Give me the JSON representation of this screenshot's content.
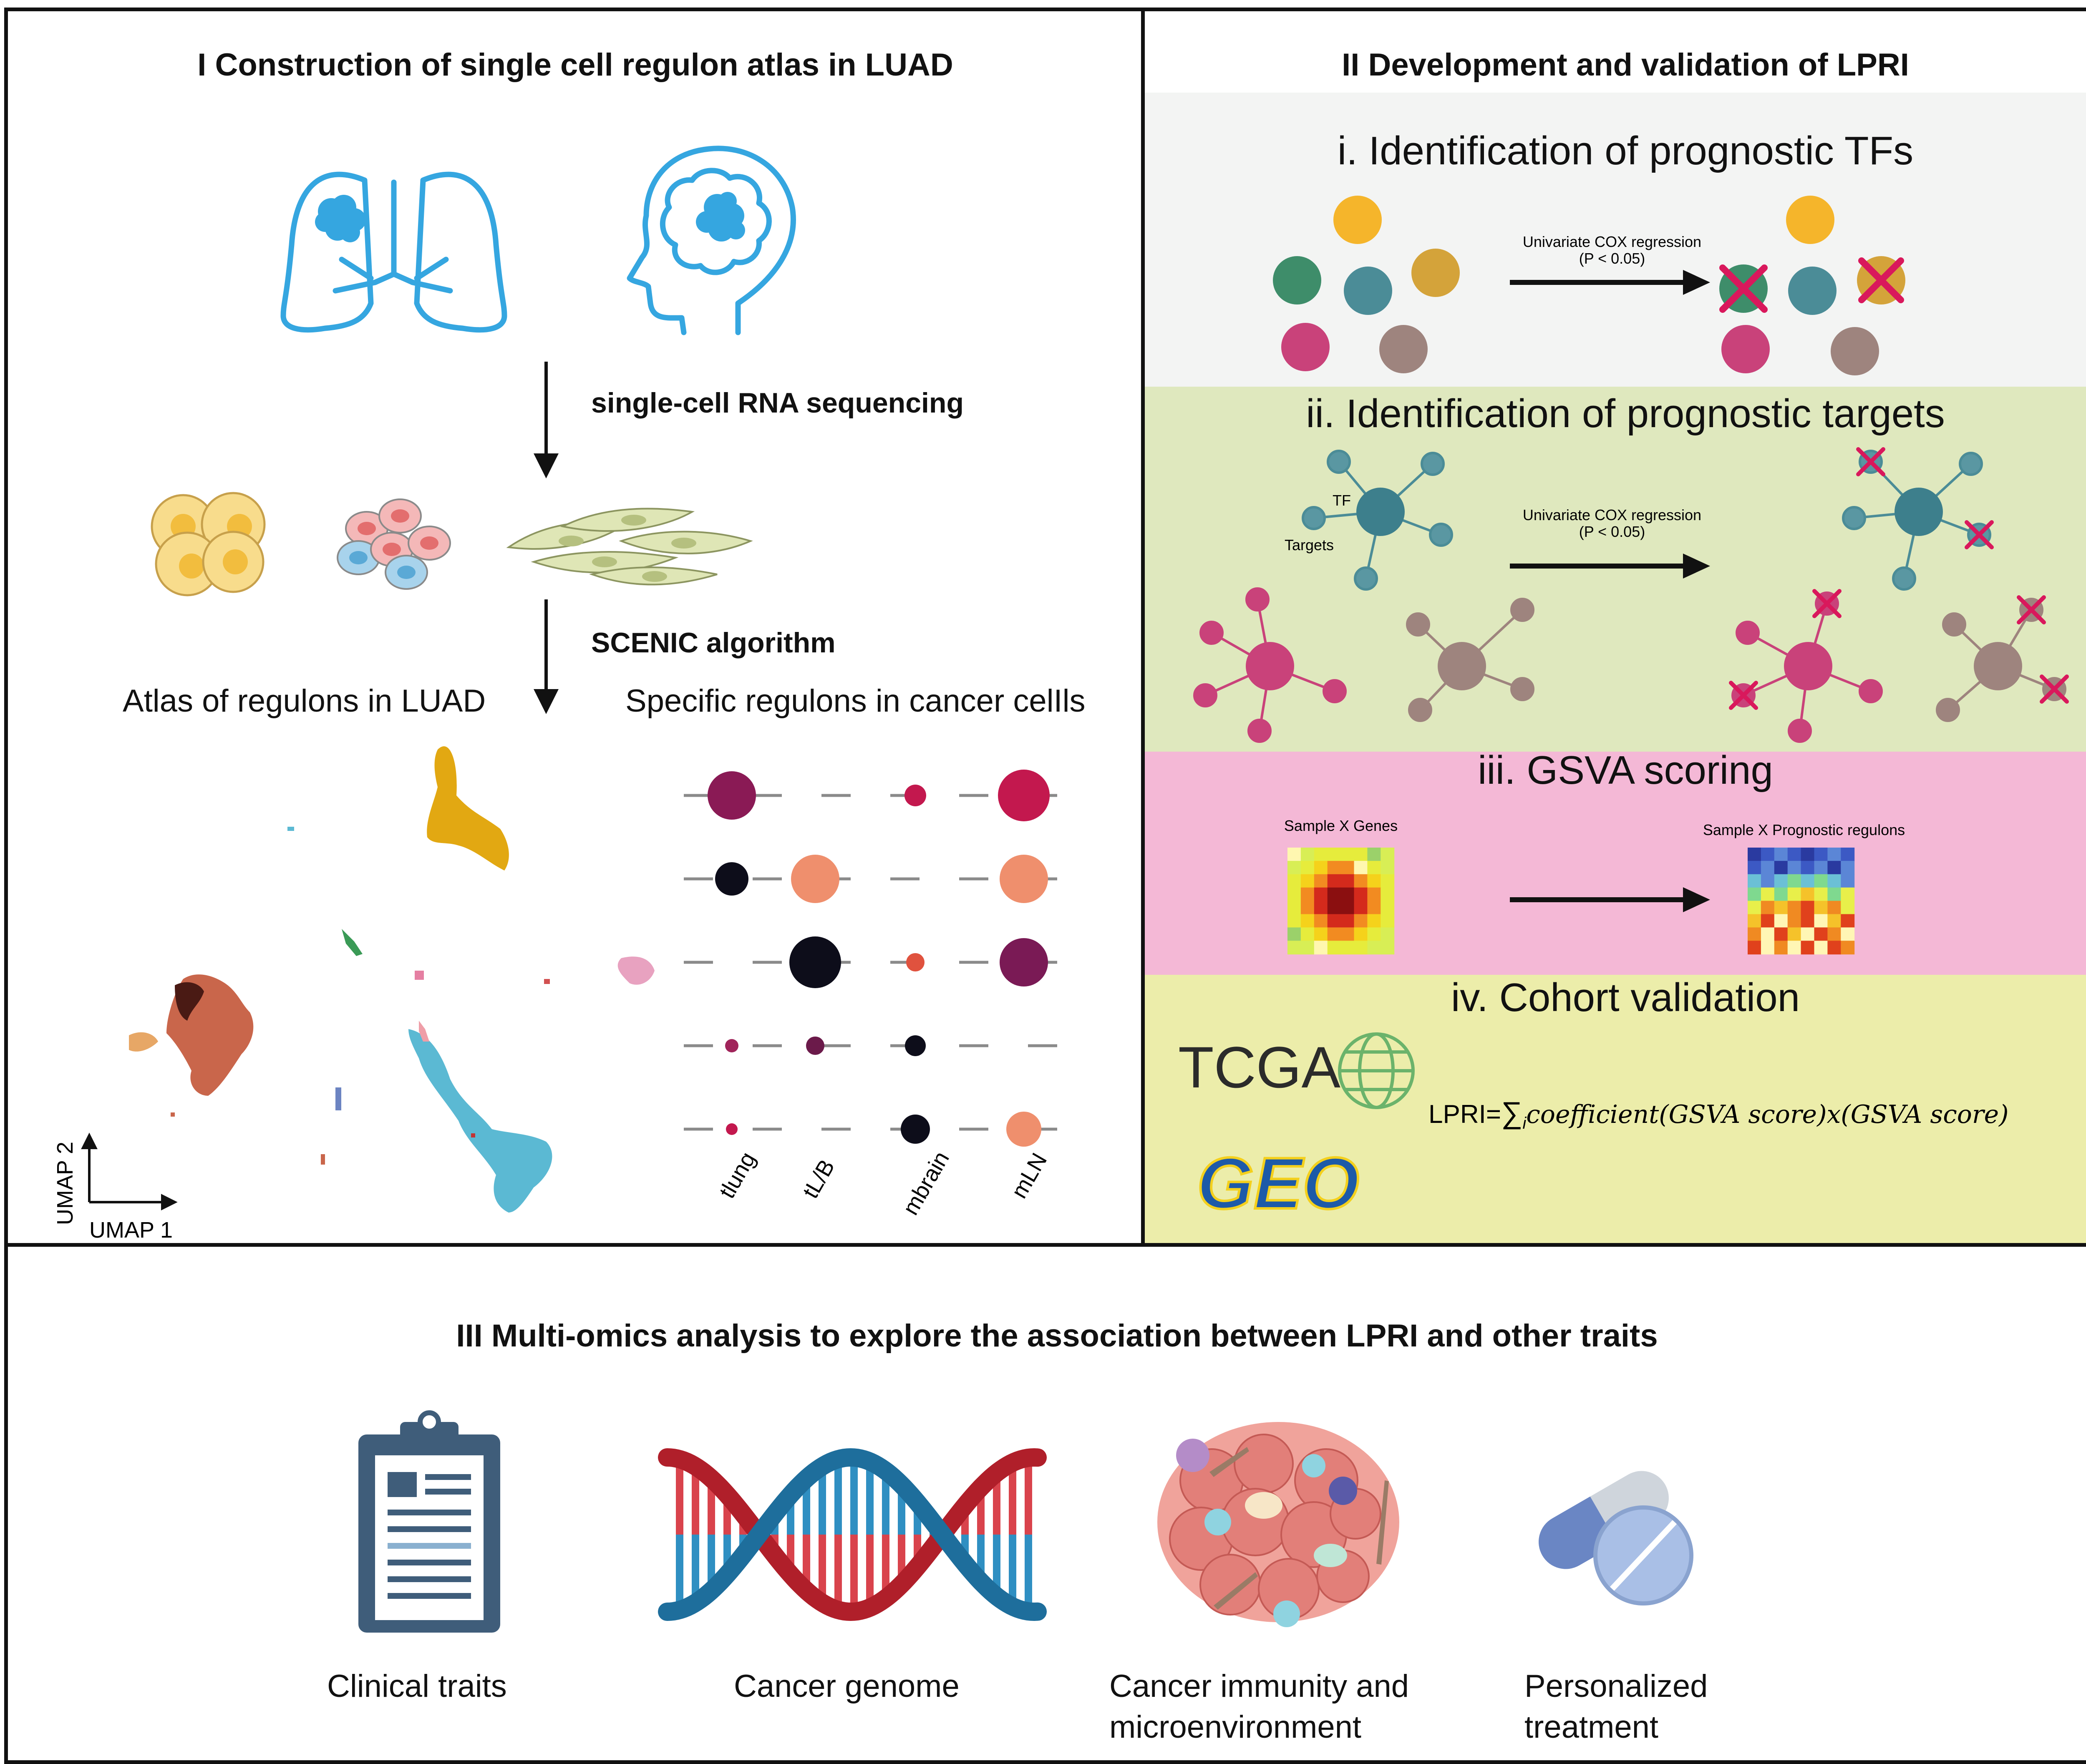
{
  "panel1": {
    "title": "I Construction of single cell regulon atlas in LUAD",
    "step1_label": "single-cell RNA sequencing",
    "step2_label": "SCENIC algorithm",
    "atlas_label": "Atlas of regulons in LUAD",
    "specific_label": "Specific regulons in cancer celIls",
    "umap_x": "UMAP 1",
    "umap_y": "UMAP 2",
    "dot_columns": [
      "tlung",
      "tL/B",
      "mbrain",
      "mLN"
    ]
  },
  "panel2": {
    "title": "II Development and validation of LPRI",
    "s1": {
      "title": "i. Identification of prognostic TFs",
      "arrow_line1": "Univariate COX regression",
      "arrow_line2": "(P < 0.05)"
    },
    "s2": {
      "title": "ii. Identification of prognostic targets",
      "tf_label": "TF",
      "targets_label": "Targets",
      "arrow_line1": "Univariate COX regression",
      "arrow_line2": "(P < 0.05)"
    },
    "s3": {
      "title": "iii. GSVA scoring",
      "left_label": "Sample X Genes",
      "right_label": "Sample X Prognostic regulons"
    },
    "s4": {
      "title": "iv. Cohort validation",
      "tcga": "TCGA",
      "geo": "GEO",
      "formula_prefix": "LPRI=",
      "formula_sum": "∑",
      "formula_sub": "i",
      "formula_body": "coefficient(GSVA score)x(GSVA score)"
    }
  },
  "panel3": {
    "title": "III Multi-omics analysis to explore the association between LPRI and other traits",
    "items": [
      {
        "label1": "Clinical traits",
        "label2": ""
      },
      {
        "label1": "Cancer genome",
        "label2": ""
      },
      {
        "label1": "Cancer immunity and",
        "label2": "microenvironment"
      },
      {
        "label1": "Personalized",
        "label2": "treatment"
      }
    ]
  },
  "colors": {
    "section1_bg": "#f3f4f3",
    "section2_bg": "#dfe8be",
    "section3_bg": "#f4b8d6",
    "section4_bg": "#ecedaa",
    "organ_blue": "#35a6e0",
    "cross_red": "#d9185c",
    "magenta": "#c9427a",
    "teal": "#4b8c97",
    "mauve": "#9e847e",
    "gold": "#f5b52b",
    "green": "#3e8d6a",
    "dna_red": "#c8242d",
    "dna_blue": "#1e6e9c",
    "clipboard": "#3f5d7a"
  }
}
